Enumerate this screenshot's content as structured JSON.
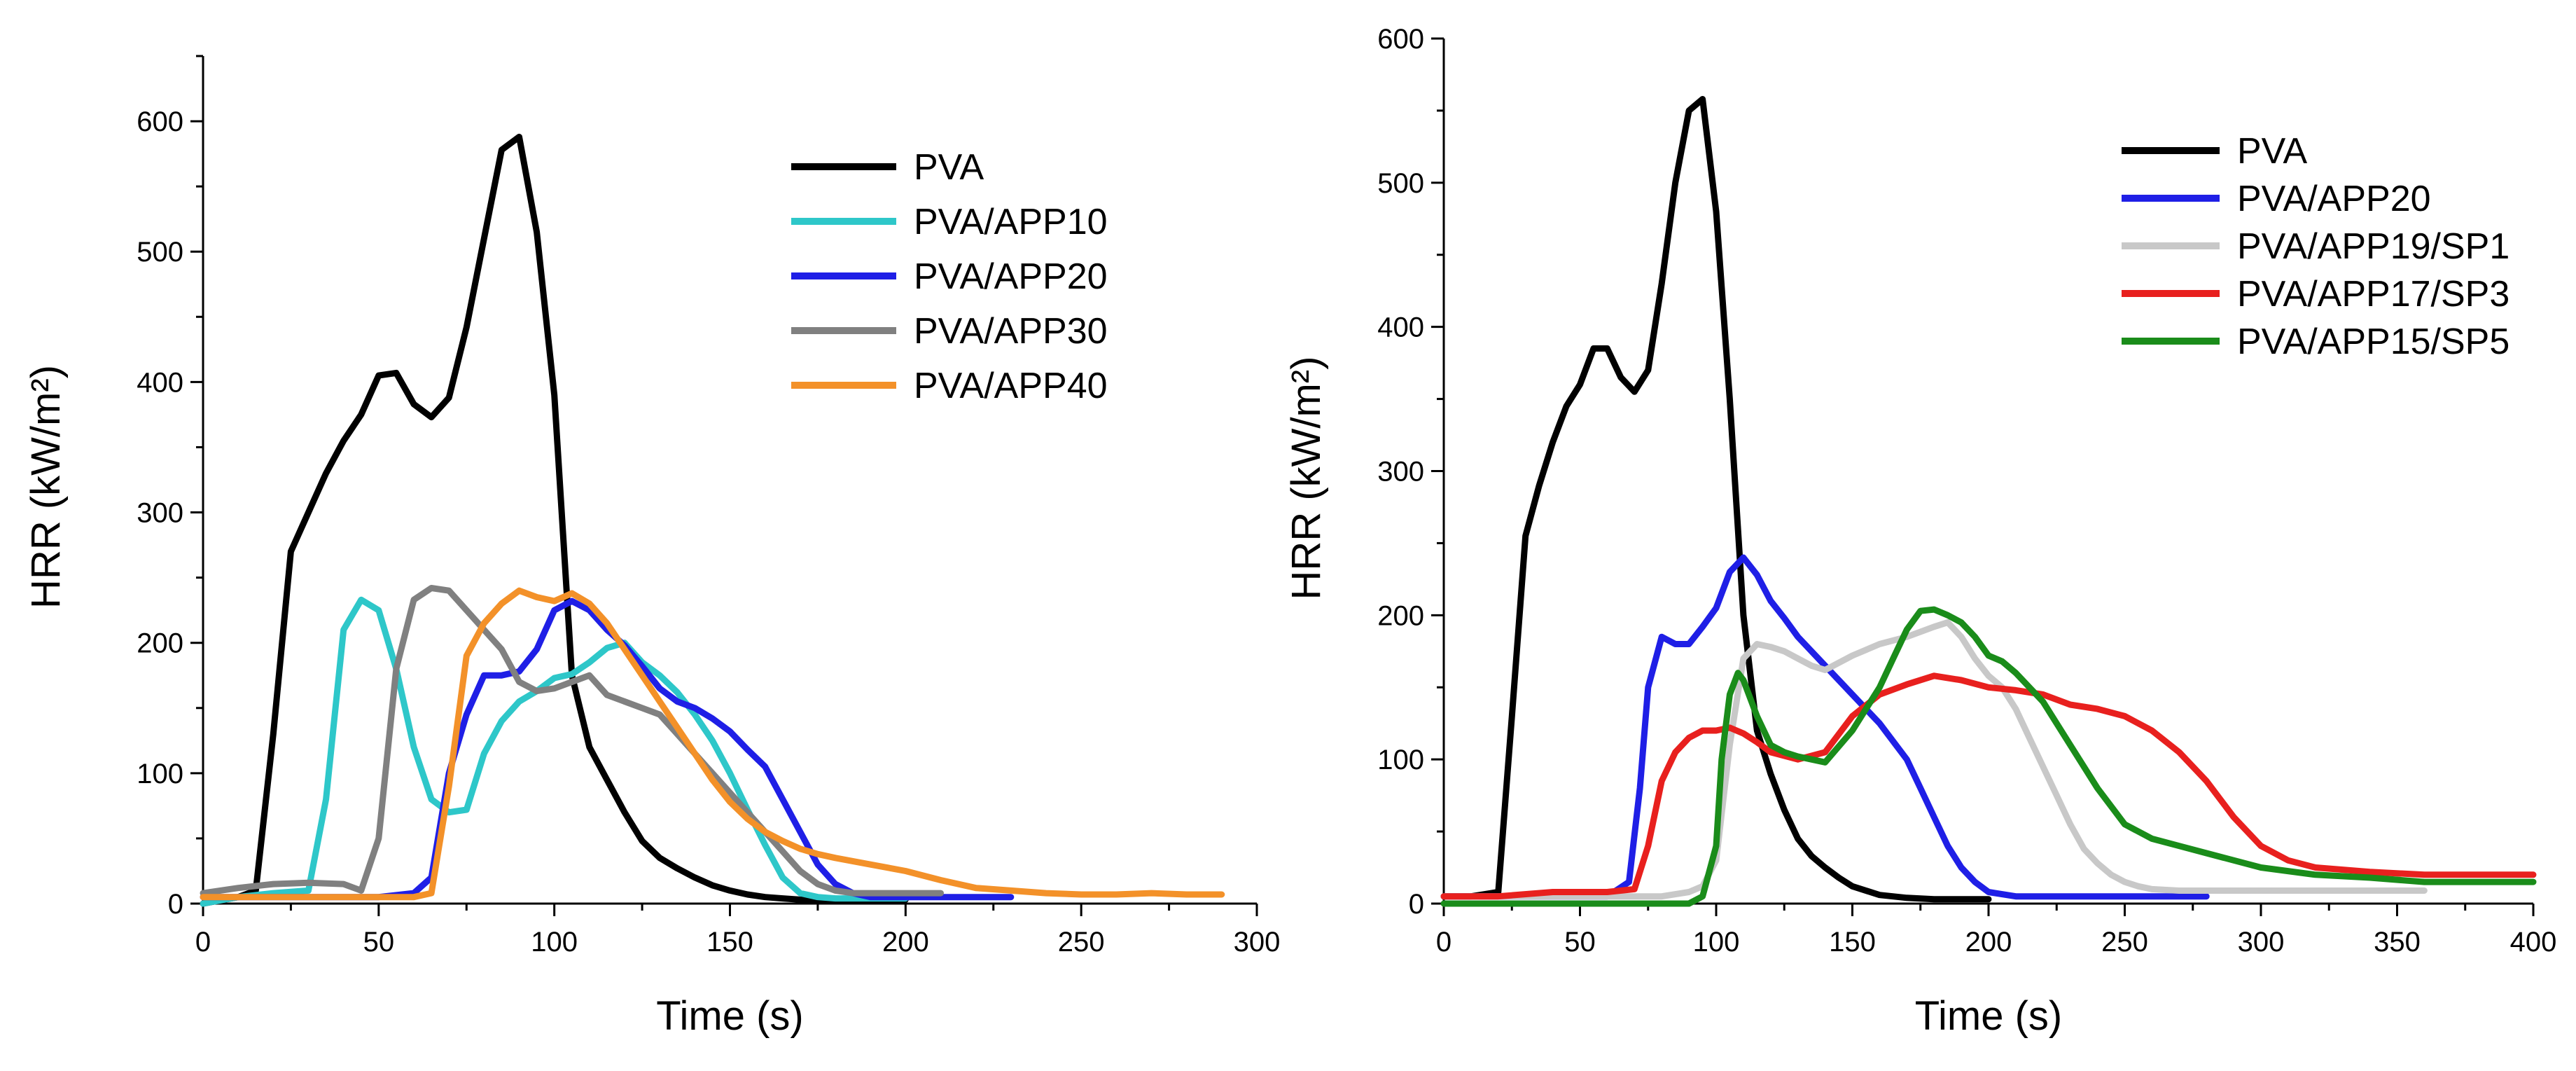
{
  "chart_data": [
    {
      "type": "line",
      "title": "",
      "xlabel": "Time (s)",
      "ylabel": "HRR (kW/m²)",
      "xlim": [
        0,
        300
      ],
      "ylim": [
        0,
        650
      ],
      "xticks": [
        0,
        50,
        100,
        150,
        200,
        250,
        300
      ],
      "yticks": [
        0,
        100,
        200,
        300,
        400,
        500,
        600
      ],
      "xtick_labels": [
        "0",
        "50",
        "100",
        "150",
        "200",
        "250",
        "300"
      ],
      "ytick_labels": [
        "0",
        "100",
        "200",
        "300",
        "400",
        "500",
        "600"
      ],
      "legend_position": "top-right",
      "grid": false,
      "series": [
        {
          "name": "PVA",
          "color": "#000000",
          "x": [
            0,
            10,
            15,
            20,
            25,
            30,
            35,
            40,
            45,
            50,
            55,
            60,
            65,
            70,
            75,
            80,
            85,
            90,
            95,
            100,
            105,
            110,
            115,
            120,
            125,
            130,
            135,
            140,
            145,
            150,
            155,
            160,
            165,
            170,
            175,
            180,
            185,
            190,
            195,
            200
          ],
          "y": [
            0,
            5,
            10,
            130,
            270,
            300,
            330,
            355,
            375,
            405,
            407,
            383,
            373,
            388,
            442,
            510,
            578,
            588,
            515,
            390,
            175,
            120,
            95,
            70,
            48,
            35,
            27,
            20,
            14,
            10,
            7,
            5,
            4,
            3,
            3,
            3,
            3,
            3,
            3,
            3
          ]
        },
        {
          "name": "PVA/APP10",
          "color": "#2ec7c9",
          "x": [
            0,
            10,
            20,
            30,
            35,
            40,
            45,
            50,
            55,
            60,
            65,
            70,
            75,
            80,
            85,
            90,
            95,
            100,
            105,
            110,
            115,
            120,
            125,
            130,
            135,
            140,
            145,
            150,
            155,
            160,
            165,
            170,
            175,
            180,
            185,
            190,
            195,
            200
          ],
          "y": [
            0,
            5,
            8,
            10,
            80,
            210,
            233,
            225,
            180,
            120,
            80,
            70,
            72,
            115,
            140,
            155,
            163,
            173,
            176,
            185,
            196,
            200,
            185,
            175,
            162,
            145,
            125,
            100,
            72,
            45,
            20,
            8,
            5,
            4,
            4,
            4,
            4,
            4
          ]
        },
        {
          "name": "PVA/APP20",
          "color": "#1f1fe6",
          "x": [
            0,
            10,
            20,
            30,
            40,
            50,
            60,
            65,
            70,
            75,
            80,
            85,
            90,
            95,
            100,
            105,
            110,
            115,
            120,
            125,
            130,
            135,
            140,
            145,
            150,
            155,
            160,
            165,
            170,
            175,
            180,
            185,
            190,
            195,
            200,
            210,
            220,
            230
          ],
          "y": [
            5,
            5,
            5,
            5,
            5,
            5,
            8,
            20,
            100,
            145,
            175,
            175,
            178,
            195,
            225,
            232,
            225,
            210,
            198,
            182,
            165,
            155,
            150,
            142,
            132,
            118,
            105,
            80,
            55,
            30,
            15,
            8,
            5,
            5,
            5,
            5,
            5,
            5
          ]
        },
        {
          "name": "PVA/APP30",
          "color": "#808080",
          "x": [
            0,
            10,
            20,
            30,
            40,
            45,
            50,
            55,
            60,
            65,
            70,
            75,
            80,
            85,
            90,
            95,
            100,
            105,
            110,
            115,
            120,
            125,
            130,
            135,
            140,
            145,
            150,
            155,
            160,
            165,
            170,
            175,
            180,
            185,
            190,
            200,
            210
          ],
          "y": [
            8,
            12,
            15,
            16,
            15,
            10,
            50,
            180,
            233,
            242,
            240,
            225,
            210,
            195,
            170,
            163,
            165,
            170,
            175,
            160,
            155,
            150,
            145,
            130,
            115,
            100,
            85,
            70,
            55,
            40,
            25,
            15,
            10,
            8,
            8,
            8,
            8
          ]
        },
        {
          "name": "PVA/APP40",
          "color": "#f39129",
          "x": [
            0,
            10,
            20,
            30,
            40,
            50,
            60,
            65,
            70,
            75,
            80,
            85,
            90,
            95,
            100,
            105,
            110,
            115,
            120,
            125,
            130,
            135,
            140,
            145,
            150,
            155,
            160,
            165,
            170,
            175,
            180,
            190,
            200,
            210,
            220,
            230,
            240,
            250,
            260,
            270,
            280,
            290
          ],
          "y": [
            5,
            5,
            5,
            5,
            5,
            5,
            5,
            8,
            90,
            190,
            215,
            230,
            240,
            235,
            232,
            238,
            230,
            215,
            195,
            175,
            155,
            135,
            115,
            95,
            78,
            65,
            55,
            48,
            42,
            38,
            35,
            30,
            25,
            18,
            12,
            10,
            8,
            7,
            7,
            8,
            7,
            7
          ]
        }
      ]
    },
    {
      "type": "line",
      "title": "",
      "xlabel": "Time (s)",
      "ylabel": "HRR (kW/m²)",
      "xlim": [
        0,
        400
      ],
      "ylim": [
        0,
        600
      ],
      "xticks": [
        0,
        50,
        100,
        150,
        200,
        250,
        300,
        350,
        400
      ],
      "yticks": [
        0,
        100,
        200,
        300,
        400,
        500,
        600
      ],
      "xtick_labels": [
        "0",
        "50",
        "100",
        "150",
        "200",
        "250",
        "300",
        "350",
        "400"
      ],
      "ytick_labels": [
        "0",
        "100",
        "200",
        "300",
        "400",
        "500",
        "600"
      ],
      "legend_position": "top-right",
      "grid": false,
      "series": [
        {
          "name": "PVA",
          "color": "#000000",
          "x": [
            0,
            10,
            20,
            25,
            30,
            35,
            40,
            45,
            50,
            55,
            60,
            65,
            70,
            75,
            80,
            85,
            90,
            95,
            100,
            105,
            110,
            115,
            120,
            125,
            130,
            135,
            140,
            145,
            150,
            160,
            170,
            180,
            190,
            200
          ],
          "y": [
            5,
            5,
            8,
            130,
            255,
            290,
            320,
            345,
            360,
            385,
            385,
            365,
            355,
            370,
            430,
            500,
            550,
            558,
            480,
            350,
            200,
            120,
            90,
            65,
            45,
            33,
            25,
            18,
            12,
            6,
            4,
            3,
            3,
            3
          ]
        },
        {
          "name": "PVA/APP20",
          "color": "#1f1fe6",
          "x": [
            0,
            20,
            40,
            60,
            68,
            72,
            75,
            80,
            85,
            90,
            95,
            100,
            105,
            110,
            115,
            120,
            125,
            130,
            140,
            150,
            160,
            170,
            175,
            180,
            185,
            190,
            195,
            200,
            210,
            220,
            240,
            260,
            280
          ],
          "y": [
            5,
            5,
            5,
            5,
            15,
            80,
            150,
            185,
            180,
            180,
            192,
            205,
            230,
            240,
            228,
            210,
            198,
            185,
            165,
            145,
            125,
            100,
            80,
            60,
            40,
            25,
            15,
            8,
            5,
            5,
            5,
            5,
            5
          ]
        },
        {
          "name": "PVA/APP19/SP1",
          "color": "#c8c8c8",
          "x": [
            0,
            20,
            40,
            60,
            80,
            90,
            95,
            100,
            105,
            110,
            115,
            120,
            125,
            130,
            135,
            140,
            150,
            160,
            170,
            180,
            185,
            190,
            195,
            200,
            205,
            210,
            215,
            220,
            225,
            230,
            235,
            240,
            245,
            250,
            255,
            260,
            270,
            280,
            300,
            330,
            360
          ],
          "y": [
            5,
            5,
            5,
            5,
            5,
            8,
            12,
            30,
            110,
            170,
            180,
            178,
            175,
            170,
            165,
            162,
            172,
            180,
            185,
            192,
            195,
            185,
            170,
            158,
            150,
            135,
            115,
            95,
            75,
            55,
            38,
            28,
            20,
            15,
            12,
            10,
            9,
            9,
            9,
            9,
            9
          ]
        },
        {
          "name": "PVA/APP17/SP3",
          "color": "#e8201e",
          "x": [
            0,
            20,
            40,
            60,
            70,
            75,
            80,
            85,
            90,
            95,
            100,
            105,
            110,
            115,
            120,
            130,
            140,
            150,
            160,
            170,
            180,
            190,
            200,
            210,
            220,
            230,
            240,
            250,
            260,
            270,
            280,
            290,
            300,
            310,
            320,
            340,
            360,
            380,
            400
          ],
          "y": [
            5,
            5,
            8,
            8,
            10,
            40,
            85,
            105,
            115,
            120,
            120,
            122,
            118,
            112,
            105,
            100,
            105,
            130,
            145,
            152,
            158,
            155,
            150,
            148,
            145,
            138,
            135,
            130,
            120,
            105,
            85,
            60,
            40,
            30,
            25,
            22,
            20,
            20,
            20
          ]
        },
        {
          "name": "PVA/APP15/SP5",
          "color": "#1a8c1a",
          "x": [
            0,
            40,
            80,
            90,
            95,
            100,
            102,
            105,
            108,
            110,
            115,
            120,
            125,
            130,
            135,
            140,
            150,
            160,
            165,
            170,
            175,
            180,
            185,
            190,
            195,
            200,
            205,
            210,
            220,
            230,
            240,
            250,
            260,
            270,
            280,
            300,
            320,
            340,
            360,
            380,
            400
          ],
          "y": [
            0,
            0,
            0,
            0,
            5,
            40,
            100,
            145,
            160,
            155,
            130,
            110,
            105,
            102,
            100,
            98,
            120,
            150,
            170,
            190,
            203,
            204,
            200,
            195,
            185,
            172,
            168,
            160,
            140,
            110,
            80,
            55,
            45,
            40,
            35,
            25,
            20,
            18,
            15,
            15,
            15
          ]
        }
      ]
    }
  ]
}
